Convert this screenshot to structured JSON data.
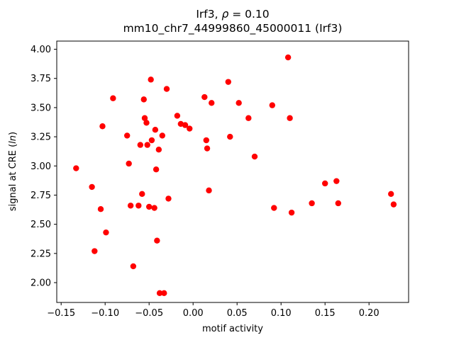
{
  "chart_data": {
    "type": "scatter",
    "title_line1": {
      "prefix": "Irf3, ",
      "rho": "ρ",
      "suffix": " = 0.10"
    },
    "title_line2": "mm10_chr7_44999860_45000011 (Irf3)",
    "xlabel": "motif activity",
    "ylabel": {
      "prefix": "signal at CRE (",
      "italic": "ln",
      "suffix": ")"
    },
    "xlim": [
      -0.155,
      0.245
    ],
    "ylim": [
      1.83,
      4.07
    ],
    "x_ticks": [
      {
        "v": -0.15,
        "label": "−0.15"
      },
      {
        "v": -0.1,
        "label": "−0.10"
      },
      {
        "v": -0.05,
        "label": "−0.05"
      },
      {
        "v": 0.0,
        "label": "0.00"
      },
      {
        "v": 0.05,
        "label": "0.05"
      },
      {
        "v": 0.1,
        "label": "0.10"
      },
      {
        "v": 0.15,
        "label": "0.15"
      },
      {
        "v": 0.2,
        "label": "0.20"
      }
    ],
    "y_ticks": [
      {
        "v": 2.0,
        "label": "2.00"
      },
      {
        "v": 2.25,
        "label": "2.25"
      },
      {
        "v": 2.5,
        "label": "2.50"
      },
      {
        "v": 2.75,
        "label": "2.75"
      },
      {
        "v": 3.0,
        "label": "3.00"
      },
      {
        "v": 3.25,
        "label": "3.25"
      },
      {
        "v": 3.5,
        "label": "3.50"
      },
      {
        "v": 3.75,
        "label": "3.75"
      },
      {
        "v": 4.0,
        "label": "4.00"
      }
    ],
    "point_color": "#ff0000",
    "axis_color": "#000000",
    "legend": "none",
    "grid": false,
    "points": [
      [
        -0.133,
        2.98
      ],
      [
        -0.115,
        2.82
      ],
      [
        -0.112,
        2.27
      ],
      [
        -0.105,
        2.63
      ],
      [
        -0.103,
        3.34
      ],
      [
        -0.099,
        2.43
      ],
      [
        -0.091,
        3.58
      ],
      [
        -0.075,
        3.26
      ],
      [
        -0.073,
        3.02
      ],
      [
        -0.071,
        2.66
      ],
      [
        -0.068,
        2.14
      ],
      [
        -0.062,
        2.66
      ],
      [
        -0.06,
        3.18
      ],
      [
        -0.058,
        2.76
      ],
      [
        -0.056,
        3.57
      ],
      [
        -0.055,
        3.41
      ],
      [
        -0.053,
        3.37
      ],
      [
        -0.052,
        3.18
      ],
      [
        -0.05,
        2.65
      ],
      [
        -0.048,
        3.74
      ],
      [
        -0.047,
        3.22
      ],
      [
        -0.044,
        2.64
      ],
      [
        -0.043,
        3.31
      ],
      [
        -0.042,
        2.97
      ],
      [
        -0.041,
        2.36
      ],
      [
        -0.039,
        3.14
      ],
      [
        -0.038,
        1.91
      ],
      [
        -0.035,
        3.26
      ],
      [
        -0.033,
        1.91
      ],
      [
        -0.03,
        3.66
      ],
      [
        -0.028,
        2.72
      ],
      [
        -0.018,
        3.43
      ],
      [
        -0.014,
        3.36
      ],
      [
        -0.009,
        3.35
      ],
      [
        -0.004,
        3.32
      ],
      [
        0.013,
        3.59
      ],
      [
        0.015,
        3.22
      ],
      [
        0.016,
        3.15
      ],
      [
        0.018,
        2.79
      ],
      [
        0.021,
        3.54
      ],
      [
        0.04,
        3.72
      ],
      [
        0.042,
        3.25
      ],
      [
        0.052,
        3.54
      ],
      [
        0.063,
        3.41
      ],
      [
        0.07,
        3.08
      ],
      [
        0.09,
        3.52
      ],
      [
        0.092,
        2.64
      ],
      [
        0.108,
        3.93
      ],
      [
        0.11,
        3.41
      ],
      [
        0.112,
        2.6
      ],
      [
        0.135,
        2.68
      ],
      [
        0.15,
        2.85
      ],
      [
        0.163,
        2.87
      ],
      [
        0.165,
        2.68
      ],
      [
        0.225,
        2.76
      ],
      [
        0.228,
        2.67
      ]
    ]
  }
}
